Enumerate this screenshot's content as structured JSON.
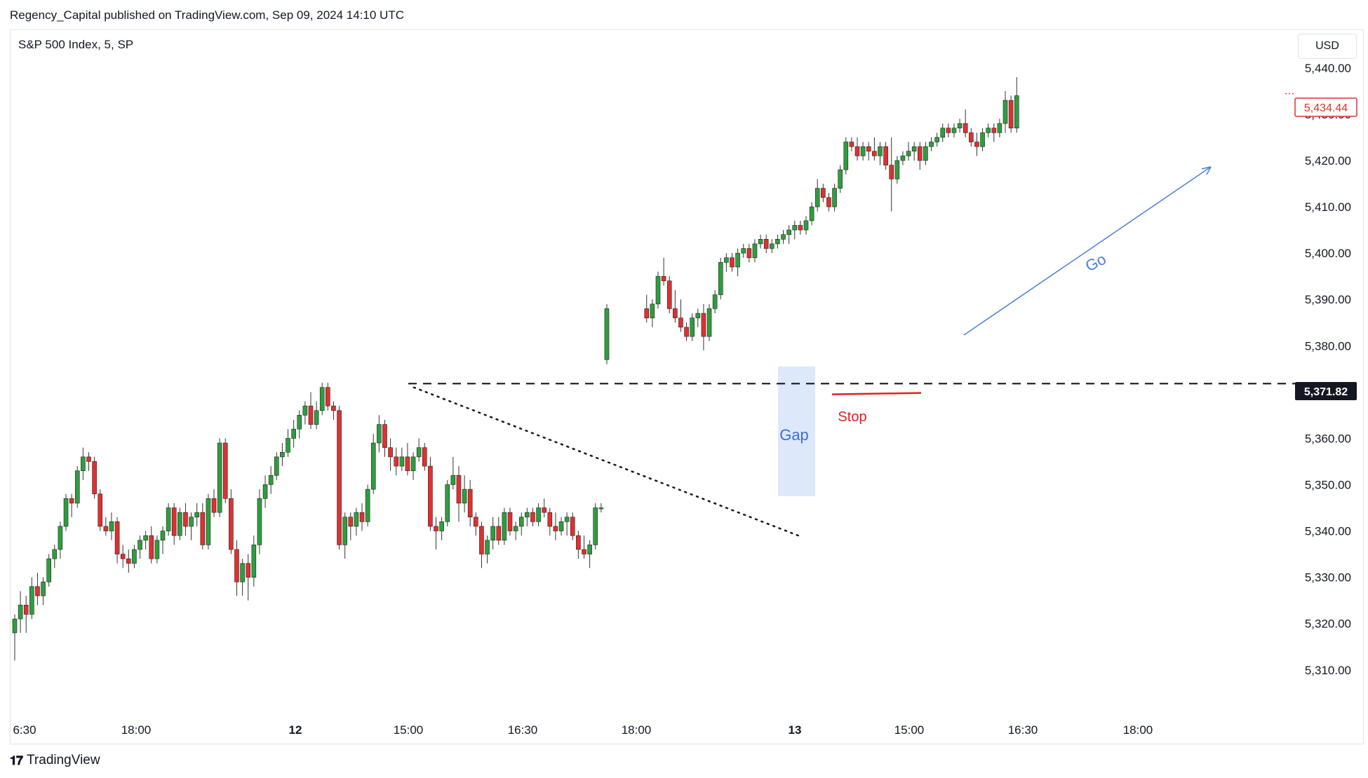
{
  "header": {
    "published": "Regency_Capital published on TradingView.com, Sep 09, 2024 14:10 UTC"
  },
  "symbol": "S&P 500 Index, 5, SP",
  "currency": "USD",
  "footer": {
    "logo_icon": "tradingview-logo-icon",
    "brand": "TradingView"
  },
  "colors": {
    "up": "#089981",
    "up_body": "#2e9e3e",
    "down": "#e03030",
    "gap_fill": "#dde8fb",
    "go_arrow": "#4a7fd6",
    "stop_line": "#e02020",
    "last_price": "#e03030"
  },
  "chart_data": {
    "type": "candlestick",
    "ylim": [
      5303,
      5448
    ],
    "y_ticks": [
      "5,440.00",
      "5,430.00",
      "5,420.00",
      "5,410.00",
      "5,400.00",
      "5,390.00",
      "5,380.00",
      "5,360.00",
      "5,350.00",
      "5,340.00",
      "5,330.00",
      "5,320.00",
      "5,310.00"
    ],
    "x_ticks": [
      {
        "label": "6:30",
        "bold": false
      },
      {
        "label": "18:00",
        "bold": false
      },
      {
        "label": "12",
        "bold": true
      },
      {
        "label": "15:00",
        "bold": false
      },
      {
        "label": "16:30",
        "bold": false
      },
      {
        "label": "18:00",
        "bold": false
      },
      {
        "label": "13",
        "bold": true
      },
      {
        "label": "15:00",
        "bold": false
      },
      {
        "label": "16:30",
        "bold": false
      },
      {
        "label": "18:00",
        "bold": false
      }
    ],
    "price_labels": {
      "last": "5,434.44",
      "level": "5,371.82"
    },
    "level_value": 5371.82,
    "last_value": 5434.44,
    "annotations": {
      "gap": "Gap",
      "stop": "Stop",
      "go": "Go"
    },
    "gap_zone": [
      5347.5,
      5375.5
    ],
    "stop_value": 5369.5,
    "candles": [
      [
        5318,
        5322,
        5312,
        5321
      ],
      [
        5321,
        5327,
        5318,
        5324
      ],
      [
        5324,
        5326,
        5318,
        5322
      ],
      [
        5322,
        5330,
        5321,
        5328
      ],
      [
        5328,
        5331,
        5324,
        5326
      ],
      [
        5326,
        5330,
        5324,
        5329
      ],
      [
        5329,
        5335,
        5328,
        5334
      ],
      [
        5334,
        5337,
        5332,
        5336
      ],
      [
        5336,
        5342,
        5334,
        5341
      ],
      [
        5341,
        5348,
        5340,
        5347
      ],
      [
        5347,
        5348,
        5343,
        5346
      ],
      [
        5346,
        5354,
        5345,
        5353
      ],
      [
        5353,
        5358,
        5351,
        5356
      ],
      [
        5356,
        5357,
        5353,
        5355
      ],
      [
        5355,
        5356,
        5347,
        5348
      ],
      [
        5348,
        5349,
        5340,
        5341
      ],
      [
        5341,
        5343,
        5339,
        5340
      ],
      [
        5340,
        5344,
        5338,
        5342
      ],
      [
        5342,
        5343,
        5333,
        5335
      ],
      [
        5335,
        5337,
        5332,
        5334
      ],
      [
        5334,
        5336,
        5331,
        5333
      ],
      [
        5333,
        5337,
        5332,
        5336
      ],
      [
        5336,
        5339,
        5334,
        5338
      ],
      [
        5338,
        5340,
        5336,
        5339
      ],
      [
        5339,
        5341,
        5333,
        5334
      ],
      [
        5334,
        5339,
        5333,
        5338
      ],
      [
        5338,
        5341,
        5335,
        5340
      ],
      [
        5340,
        5346,
        5339,
        5345
      ],
      [
        5345,
        5346,
        5337,
        5339
      ],
      [
        5339,
        5345,
        5338,
        5344
      ],
      [
        5344,
        5346,
        5339,
        5341
      ],
      [
        5341,
        5344,
        5338,
        5343
      ],
      [
        5343,
        5346,
        5341,
        5344
      ],
      [
        5344,
        5346,
        5336,
        5337
      ],
      [
        5337,
        5348,
        5336,
        5347
      ],
      [
        5347,
        5349,
        5343,
        5344
      ],
      [
        5344,
        5360,
        5343,
        5359
      ],
      [
        5359,
        5360,
        5346,
        5347
      ],
      [
        5347,
        5349,
        5335,
        5336
      ],
      [
        5336,
        5338,
        5326,
        5329
      ],
      [
        5329,
        5334,
        5326,
        5333
      ],
      [
        5333,
        5335,
        5325,
        5330
      ],
      [
        5330,
        5339,
        5328,
        5337
      ],
      [
        5337,
        5349,
        5335,
        5347
      ],
      [
        5347,
        5352,
        5345,
        5350
      ],
      [
        5350,
        5354,
        5348,
        5352
      ],
      [
        5352,
        5357,
        5351,
        5356
      ],
      [
        5356,
        5359,
        5354,
        5357
      ],
      [
        5357,
        5362,
        5356,
        5360
      ],
      [
        5360,
        5364,
        5358,
        5362
      ],
      [
        5362,
        5366,
        5360,
        5365
      ],
      [
        5365,
        5368,
        5363,
        5367
      ],
      [
        5367,
        5370,
        5362,
        5363
      ],
      [
        5363,
        5368,
        5362,
        5366
      ],
      [
        5366,
        5372,
        5365,
        5371
      ],
      [
        5371,
        5372,
        5366,
        5367
      ],
      [
        5367,
        5368,
        5364,
        5366
      ],
      [
        5366,
        5367,
        5336,
        5337
      ],
      [
        5337,
        5344,
        5334,
        5343
      ],
      [
        5343,
        5344,
        5338,
        5341
      ],
      [
        5341,
        5345,
        5339,
        5344
      ],
      [
        5344,
        5346,
        5340,
        5342
      ],
      [
        5342,
        5350,
        5341,
        5349
      ],
      [
        5349,
        5361,
        5348,
        5359
      ],
      [
        5359,
        5365,
        5357,
        5363
      ],
      [
        5363,
        5364,
        5356,
        5358
      ],
      [
        5358,
        5360,
        5353,
        5356
      ],
      [
        5356,
        5358,
        5352,
        5354
      ],
      [
        5354,
        5358,
        5353,
        5356
      ],
      [
        5356,
        5359,
        5352,
        5353
      ],
      [
        5353,
        5357,
        5351,
        5356
      ],
      [
        5356,
        5360,
        5355,
        5358
      ],
      [
        5358,
        5359,
        5353,
        5354
      ],
      [
        5354,
        5356,
        5340,
        5341
      ],
      [
        5341,
        5343,
        5336,
        5340
      ],
      [
        5340,
        5343,
        5338,
        5342
      ],
      [
        5342,
        5351,
        5341,
        5350
      ],
      [
        5350,
        5356,
        5349,
        5352
      ],
      [
        5352,
        5354,
        5342,
        5346
      ],
      [
        5346,
        5352,
        5344,
        5349
      ],
      [
        5349,
        5351,
        5341,
        5343
      ],
      [
        5343,
        5344,
        5339,
        5341
      ],
      [
        5341,
        5342,
        5332,
        5335
      ],
      [
        5335,
        5339,
        5333,
        5338
      ],
      [
        5338,
        5343,
        5336,
        5341
      ],
      [
        5341,
        5343,
        5337,
        5338
      ],
      [
        5338,
        5345,
        5337,
        5344
      ],
      [
        5344,
        5345,
        5339,
        5340
      ],
      [
        5340,
        5342,
        5338,
        5341
      ],
      [
        5341,
        5344,
        5339,
        5343
      ],
      [
        5343,
        5345,
        5341,
        5344
      ],
      [
        5344,
        5345,
        5341,
        5342
      ],
      [
        5342,
        5346,
        5341,
        5345
      ],
      [
        5345,
        5347,
        5343,
        5344
      ],
      [
        5344,
        5345,
        5339,
        5341
      ],
      [
        5341,
        5344,
        5338,
        5340
      ],
      [
        5340,
        5343,
        5339,
        5342
      ],
      [
        5342,
        5344,
        5339,
        5343
      ],
      [
        5343,
        5344,
        5338,
        5339
      ],
      [
        5339,
        5340,
        5334,
        5336
      ],
      [
        5336,
        5339,
        5334,
        5335
      ],
      [
        5335,
        5338,
        5332,
        5337
      ],
      [
        5337,
        5346,
        5336,
        5345
      ],
      [
        5345,
        5346,
        5344,
        5345
      ],
      [
        5377,
        5389,
        5376,
        5388
      ],
      [
        5388,
        5391,
        5385,
        5386
      ],
      [
        5386,
        5390,
        5384,
        5389
      ],
      [
        5389,
        5396,
        5388,
        5395
      ],
      [
        5395,
        5399,
        5393,
        5394
      ],
      [
        5394,
        5395,
        5387,
        5388
      ],
      [
        5388,
        5392,
        5385,
        5386
      ],
      [
        5386,
        5390,
        5383,
        5384
      ],
      [
        5384,
        5385,
        5381,
        5382
      ],
      [
        5382,
        5387,
        5381,
        5386
      ],
      [
        5386,
        5388,
        5384,
        5387
      ],
      [
        5387,
        5389,
        5379,
        5382
      ],
      [
        5382,
        5389,
        5381,
        5388
      ],
      [
        5388,
        5392,
        5387,
        5391
      ],
      [
        5391,
        5399,
        5390,
        5398
      ],
      [
        5398,
        5400,
        5396,
        5399
      ],
      [
        5399,
        5400,
        5396,
        5397
      ],
      [
        5397,
        5401,
        5395,
        5400
      ],
      [
        5400,
        5402,
        5399,
        5401
      ],
      [
        5401,
        5402,
        5398,
        5399
      ],
      [
        5399,
        5403,
        5398,
        5402
      ],
      [
        5402,
        5404,
        5401,
        5403
      ],
      [
        5403,
        5404,
        5400,
        5401
      ],
      [
        5401,
        5403,
        5400,
        5402
      ],
      [
        5402,
        5404,
        5401,
        5403
      ],
      [
        5403,
        5405,
        5402,
        5404
      ],
      [
        5404,
        5406,
        5402,
        5405
      ],
      [
        5405,
        5407,
        5403,
        5406
      ],
      [
        5406,
        5407,
        5404,
        5405
      ],
      [
        5405,
        5408,
        5404,
        5407
      ],
      [
        5407,
        5411,
        5406,
        5410
      ],
      [
        5410,
        5416,
        5409,
        5414
      ],
      [
        5414,
        5415,
        5411,
        5412
      ],
      [
        5412,
        5413,
        5409,
        5410
      ],
      [
        5410,
        5415,
        5409,
        5414
      ],
      [
        5414,
        5419,
        5413,
        5418
      ],
      [
        5418,
        5425,
        5417,
        5424
      ],
      [
        5424,
        5425,
        5422,
        5423
      ],
      [
        5423,
        5425,
        5420,
        5421
      ],
      [
        5421,
        5424,
        5420,
        5423
      ],
      [
        5423,
        5424,
        5420,
        5422
      ],
      [
        5422,
        5425,
        5420,
        5421
      ],
      [
        5421,
        5424,
        5419,
        5423
      ],
      [
        5423,
        5424,
        5418,
        5419
      ],
      [
        5419,
        5425,
        5409,
        5416
      ],
      [
        5416,
        5421,
        5415,
        5420
      ],
      [
        5420,
        5422,
        5419,
        5421
      ],
      [
        5421,
        5424,
        5420,
        5422
      ],
      [
        5422,
        5424,
        5420,
        5423
      ],
      [
        5423,
        5424,
        5418,
        5420
      ],
      [
        5420,
        5424,
        5419,
        5423
      ],
      [
        5423,
        5425,
        5422,
        5424
      ],
      [
        5424,
        5426,
        5423,
        5425
      ],
      [
        5425,
        5428,
        5424,
        5427
      ],
      [
        5427,
        5428,
        5425,
        5426
      ],
      [
        5426,
        5428,
        5425,
        5427
      ],
      [
        5427,
        5429,
        5426,
        5428
      ],
      [
        5428,
        5431,
        5425,
        5426
      ],
      [
        5426,
        5427,
        5423,
        5424
      ],
      [
        5424,
        5426,
        5421,
        5423
      ],
      [
        5423,
        5427,
        5422,
        5426
      ],
      [
        5426,
        5428,
        5425,
        5427
      ],
      [
        5427,
        5428,
        5424,
        5426
      ],
      [
        5426,
        5429,
        5425,
        5428
      ],
      [
        5428,
        5435,
        5426,
        5433
      ],
      [
        5433,
        5434,
        5426,
        5427
      ],
      [
        5427,
        5438,
        5426,
        5434
      ]
    ]
  }
}
